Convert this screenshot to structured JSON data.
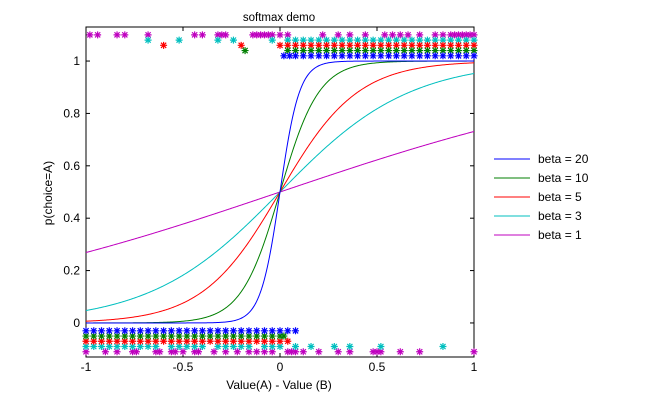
{
  "chart_data": {
    "type": "line",
    "title": "softmax demo",
    "xlabel": "Value(A) - Value (B)",
    "ylabel": "p(choice=A)",
    "xlim": [
      -1,
      1
    ],
    "ylim": [
      -0.13,
      1.13
    ],
    "x_ticks": [
      -1,
      -0.5,
      0,
      0.5,
      1
    ],
    "x_tick_labels": [
      "-1",
      "-0.5",
      "0",
      "0.5",
      "1"
    ],
    "y_ticks": [
      0,
      0.2,
      0.4,
      0.6,
      0.8,
      1
    ],
    "y_tick_labels": [
      "0",
      "0.2",
      "0.4",
      "0.6",
      "0.8",
      "1"
    ],
    "grid": false,
    "legend_position": "outside-right",
    "series": [
      {
        "name": "beta = 20",
        "beta": 20,
        "color": "#0000ff",
        "choice_top_y": 1.02,
        "choice_bottom_y": -0.03
      },
      {
        "name": "beta = 10",
        "beta": 10,
        "color": "#007f00",
        "choice_top_y": 1.04,
        "choice_bottom_y": -0.05
      },
      {
        "name": "beta = 5",
        "beta": 5,
        "color": "#ff0000",
        "choice_top_y": 1.06,
        "choice_bottom_y": -0.07
      },
      {
        "name": "beta = 3",
        "beta": 3,
        "color": "#00bfbf",
        "choice_top_y": 1.08,
        "choice_bottom_y": -0.09
      },
      {
        "name": "beta = 1",
        "beta": 1,
        "color": "#bf00bf",
        "choice_top_y": 1.1,
        "choice_bottom_y": -0.11
      }
    ],
    "curve_formula": "p = 1 / (1 + exp(-beta * x))",
    "choice_markers": {
      "beta = 20": {
        "top": [
          0.02,
          0.05,
          0.08,
          0.12,
          0.16,
          0.2,
          0.24,
          0.28,
          0.32,
          0.36,
          0.4,
          0.44,
          0.48,
          0.52,
          0.56,
          0.6,
          0.64,
          0.68,
          0.72,
          0.76,
          0.8,
          0.84,
          0.88,
          0.92,
          0.96,
          1.0
        ],
        "bottom": [
          -1.0,
          -0.96,
          -0.92,
          -0.88,
          -0.84,
          -0.8,
          -0.76,
          -0.72,
          -0.68,
          -0.64,
          -0.6,
          -0.56,
          -0.52,
          -0.48,
          -0.44,
          -0.4,
          -0.36,
          -0.32,
          -0.28,
          -0.24,
          -0.2,
          -0.16,
          -0.12,
          -0.08,
          -0.04,
          0.0,
          0.04,
          0.08
        ]
      },
      "beta = 10": {
        "top": [
          -0.18,
          0.04,
          0.08,
          0.12,
          0.16,
          0.2,
          0.24,
          0.28,
          0.32,
          0.36,
          0.4,
          0.44,
          0.48,
          0.52,
          0.56,
          0.6,
          0.64,
          0.68,
          0.72,
          0.76,
          0.8,
          0.84,
          0.88,
          0.92,
          0.96,
          1.0
        ],
        "bottom": [
          -1.0,
          -0.96,
          -0.92,
          -0.88,
          -0.84,
          -0.8,
          -0.76,
          -0.72,
          -0.68,
          -0.64,
          -0.6,
          -0.56,
          -0.52,
          -0.48,
          -0.44,
          -0.4,
          -0.36,
          -0.32,
          -0.28,
          -0.24,
          -0.2,
          -0.16,
          -0.12,
          -0.08,
          -0.04,
          0.0,
          0.02
        ]
      },
      "beta = 5": {
        "top": [
          -0.6,
          -0.2,
          0.0,
          0.04,
          0.08,
          0.12,
          0.16,
          0.2,
          0.24,
          0.28,
          0.32,
          0.36,
          0.4,
          0.44,
          0.48,
          0.52,
          0.56,
          0.6,
          0.64,
          0.68,
          0.72,
          0.76,
          0.8,
          0.84,
          0.88,
          0.92,
          0.96,
          1.0
        ],
        "bottom": [
          -1.0,
          -0.96,
          -0.92,
          -0.88,
          -0.84,
          -0.8,
          -0.76,
          -0.72,
          -0.68,
          -0.64,
          -0.6,
          -0.56,
          -0.52,
          -0.48,
          -0.44,
          -0.4,
          -0.36,
          -0.32,
          -0.28,
          -0.24,
          -0.2,
          -0.16,
          -0.12,
          -0.08,
          -0.04,
          0.0,
          0.04
        ]
      },
      "beta = 3": {
        "top": [
          -0.68,
          -0.52,
          -0.32,
          -0.24,
          -0.04,
          0.04,
          0.08,
          0.12,
          0.16,
          0.2,
          0.24,
          0.28,
          0.32,
          0.36,
          0.4,
          0.44,
          0.48,
          0.52,
          0.56,
          0.6,
          0.64,
          0.68,
          0.72,
          0.76,
          0.8,
          0.84,
          0.88,
          0.92,
          0.96,
          1.0
        ],
        "bottom": [
          -1.0,
          -0.96,
          -0.92,
          -0.88,
          -0.84,
          -0.8,
          -0.76,
          -0.72,
          -0.68,
          -0.64,
          -0.56,
          -0.52,
          -0.48,
          -0.44,
          -0.4,
          -0.32,
          -0.28,
          -0.24,
          -0.2,
          -0.16,
          -0.08,
          -0.04,
          0.0,
          0.08,
          0.16,
          0.28,
          0.36,
          0.52,
          0.84
        ]
      },
      "beta = 1": {
        "top": [
          -0.98,
          -0.94,
          -0.84,
          -0.8,
          -0.68,
          -0.44,
          -0.4,
          -0.32,
          -0.3,
          -0.28,
          -0.14,
          -0.12,
          -0.1,
          -0.08,
          -0.06,
          -0.04,
          0.0,
          0.04,
          0.22,
          0.3,
          0.36,
          0.44,
          0.54,
          0.58,
          0.62,
          0.66,
          0.72,
          0.8,
          0.84,
          0.88,
          0.9,
          0.92,
          0.94,
          0.96,
          0.98,
          1.0
        ],
        "bottom": [
          -1.0,
          -0.9,
          -0.84,
          -0.76,
          -0.74,
          -0.64,
          -0.62,
          -0.56,
          -0.54,
          -0.5,
          -0.44,
          -0.42,
          -0.34,
          -0.28,
          -0.22,
          -0.16,
          -0.12,
          -0.08,
          -0.04,
          0.04,
          0.06,
          0.08,
          0.12,
          0.2,
          0.3,
          0.36,
          0.48,
          0.5,
          0.52,
          0.62,
          0.72,
          1.0
        ]
      }
    }
  }
}
